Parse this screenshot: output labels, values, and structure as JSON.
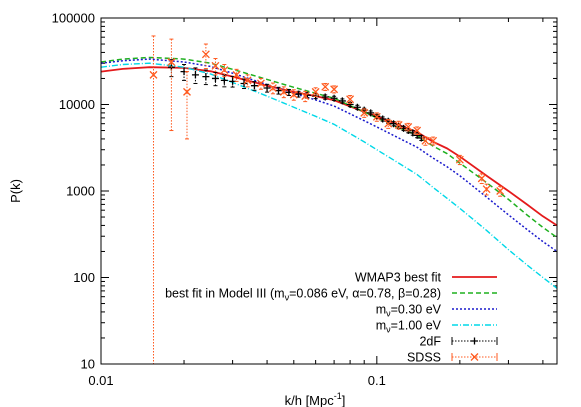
{
  "chart_data": {
    "type": "line",
    "xlabel_main": "k/h [Mpc",
    "xlabel_sup": "-1",
    "xlabel_end": "]",
    "ylabel": "P(k)",
    "x_scale": "log",
    "y_scale": "log",
    "xlim": [
      0.01,
      0.45
    ],
    "ylim": [
      10,
      100000
    ],
    "x_ticks": [
      {
        "v": 0.01,
        "label": "0.01"
      },
      {
        "v": 0.1,
        "label": "0.1"
      }
    ],
    "y_ticks": [
      {
        "v": 10,
        "label": "10"
      },
      {
        "v": 100,
        "label": "100"
      },
      {
        "v": 1000,
        "label": "1000"
      },
      {
        "v": 10000,
        "label": "10000"
      },
      {
        "v": 100000,
        "label": "100000"
      }
    ],
    "legend_position": "bottom-right",
    "series": [
      {
        "key": "wmap3",
        "name": "WMAP3 best fit",
        "legend": [
          {
            "t": "WMAP3 best fit"
          }
        ],
        "color": "#e41a1c",
        "dash": "",
        "width": 1.8,
        "points": [
          [
            0.01,
            24000
          ],
          [
            0.012,
            25800
          ],
          [
            0.015,
            27000
          ],
          [
            0.02,
            26500
          ],
          [
            0.025,
            24200
          ],
          [
            0.03,
            21000
          ],
          [
            0.04,
            16500
          ],
          [
            0.05,
            14000
          ],
          [
            0.06,
            12500
          ],
          [
            0.07,
            11200
          ],
          [
            0.08,
            9500
          ],
          [
            0.09,
            8200
          ],
          [
            0.1,
            7300
          ],
          [
            0.12,
            5800
          ],
          [
            0.14,
            4800
          ],
          [
            0.16,
            3700
          ],
          [
            0.18,
            3100
          ],
          [
            0.2,
            2500
          ],
          [
            0.25,
            1500
          ],
          [
            0.3,
            1000
          ],
          [
            0.35,
            700
          ],
          [
            0.4,
            510
          ],
          [
            0.45,
            400
          ]
        ]
      },
      {
        "key": "model3",
        "name": "best fit in Model III (mν=0.086 eV, α=0.78, β=0.28)",
        "legend": [
          {
            "t": "best fit in Model III (m"
          },
          {
            "t": "ν",
            "sub": true
          },
          {
            "t": "=0.086 eV, α=0.78, β=0.28)"
          }
        ],
        "color": "#1fb01f",
        "dash": "5,3",
        "width": 1.5,
        "points": [
          [
            0.01,
            31000
          ],
          [
            0.012,
            33500
          ],
          [
            0.015,
            35000
          ],
          [
            0.02,
            33500
          ],
          [
            0.025,
            30000
          ],
          [
            0.03,
            25500
          ],
          [
            0.04,
            19500
          ],
          [
            0.05,
            15800
          ],
          [
            0.06,
            13500
          ],
          [
            0.07,
            11800
          ],
          [
            0.08,
            9700
          ],
          [
            0.09,
            8200
          ],
          [
            0.1,
            7000
          ],
          [
            0.12,
            5400
          ],
          [
            0.14,
            4400
          ],
          [
            0.16,
            3300
          ],
          [
            0.18,
            2700
          ],
          [
            0.2,
            2100
          ],
          [
            0.25,
            1250
          ],
          [
            0.3,
            800
          ],
          [
            0.35,
            530
          ],
          [
            0.4,
            380
          ],
          [
            0.45,
            290
          ]
        ]
      },
      {
        "key": "m030",
        "name": "mν=0.30 eV",
        "legend": [
          {
            "t": "m"
          },
          {
            "t": "ν",
            "sub": true
          },
          {
            "t": "=0.30 eV"
          }
        ],
        "color": "#1a1acc",
        "dash": "2,2",
        "width": 1.5,
        "points": [
          [
            0.01,
            30000
          ],
          [
            0.012,
            32000
          ],
          [
            0.015,
            33500
          ],
          [
            0.02,
            31000
          ],
          [
            0.025,
            27500
          ],
          [
            0.03,
            23000
          ],
          [
            0.04,
            17000
          ],
          [
            0.05,
            13500
          ],
          [
            0.06,
            11300
          ],
          [
            0.07,
            9600
          ],
          [
            0.08,
            7800
          ],
          [
            0.09,
            6500
          ],
          [
            0.1,
            5500
          ],
          [
            0.12,
            4100
          ],
          [
            0.14,
            3200
          ],
          [
            0.16,
            2400
          ],
          [
            0.18,
            1900
          ],
          [
            0.2,
            1500
          ],
          [
            0.25,
            850
          ],
          [
            0.3,
            530
          ],
          [
            0.35,
            360
          ],
          [
            0.4,
            260
          ],
          [
            0.45,
            200
          ]
        ]
      },
      {
        "key": "m100",
        "name": "mν=1.00 eV",
        "legend": [
          {
            "t": "m"
          },
          {
            "t": "ν",
            "sub": true
          },
          {
            "t": "=1.00 eV"
          }
        ],
        "color": "#00d8e8",
        "dash": "6,2,1,2",
        "width": 1.4,
        "points": [
          [
            0.01,
            27000
          ],
          [
            0.012,
            29000
          ],
          [
            0.015,
            30000
          ],
          [
            0.02,
            27000
          ],
          [
            0.025,
            22500
          ],
          [
            0.03,
            18000
          ],
          [
            0.04,
            12500
          ],
          [
            0.05,
            9300
          ],
          [
            0.06,
            7300
          ],
          [
            0.07,
            5900
          ],
          [
            0.08,
            4600
          ],
          [
            0.09,
            3700
          ],
          [
            0.1,
            3000
          ],
          [
            0.12,
            2100
          ],
          [
            0.14,
            1550
          ],
          [
            0.16,
            1100
          ],
          [
            0.18,
            820
          ],
          [
            0.2,
            630
          ],
          [
            0.25,
            350
          ],
          [
            0.3,
            210
          ],
          [
            0.35,
            140
          ],
          [
            0.4,
            100
          ],
          [
            0.45,
            75
          ]
        ]
      }
    ],
    "errorbar_series": [
      {
        "key": "twodf",
        "name": "2dF",
        "legend": [
          {
            "t": "2dF"
          }
        ],
        "color": "#000000",
        "marker": "plus",
        "points": [
          [
            0.018,
            27000,
            6000
          ],
          [
            0.02,
            24000,
            5000
          ],
          [
            0.022,
            22000,
            4500
          ],
          [
            0.024,
            21000,
            4000
          ],
          [
            0.026,
            20000,
            3500
          ],
          [
            0.028,
            19000,
            3000
          ],
          [
            0.03,
            18500,
            2600
          ],
          [
            0.033,
            17500,
            2200
          ],
          [
            0.036,
            16500,
            1900
          ],
          [
            0.04,
            15500,
            1600
          ],
          [
            0.044,
            14500,
            1300
          ],
          [
            0.048,
            13800,
            1100
          ],
          [
            0.052,
            13200,
            1000
          ],
          [
            0.056,
            12800,
            900
          ],
          [
            0.06,
            12500,
            800
          ],
          [
            0.065,
            12200,
            700
          ],
          [
            0.07,
            11800,
            650
          ],
          [
            0.075,
            11000,
            600
          ],
          [
            0.08,
            10000,
            550
          ],
          [
            0.085,
            9300,
            500
          ],
          [
            0.09,
            8600,
            450
          ],
          [
            0.095,
            8000,
            420
          ],
          [
            0.1,
            7300,
            400
          ],
          [
            0.105,
            6800,
            380
          ],
          [
            0.11,
            6400,
            350
          ],
          [
            0.115,
            6000,
            330
          ],
          [
            0.12,
            5600,
            310
          ],
          [
            0.125,
            5300,
            300
          ],
          [
            0.13,
            5000,
            290
          ],
          [
            0.135,
            4700,
            280
          ],
          [
            0.14,
            4400,
            270
          ],
          [
            0.145,
            4100,
            260
          ]
        ]
      },
      {
        "key": "sdss",
        "name": "SDSS",
        "legend": [
          {
            "t": "SDSS"
          }
        ],
        "color": "#ff5a1f",
        "marker": "cross",
        "points": [
          [
            0.0155,
            22000,
            40000
          ],
          [
            0.018,
            31000,
            26000
          ],
          [
            0.0205,
            14000,
            10000
          ],
          [
            0.024,
            38000,
            12000
          ],
          [
            0.026,
            28000,
            6000
          ],
          [
            0.028,
            25000,
            4000
          ],
          [
            0.031,
            22000,
            3500
          ],
          [
            0.034,
            19000,
            3000
          ],
          [
            0.038,
            17500,
            2500
          ],
          [
            0.042,
            15500,
            2200
          ],
          [
            0.046,
            14000,
            2000
          ],
          [
            0.05,
            13000,
            1800
          ],
          [
            0.055,
            12500,
            1700
          ],
          [
            0.06,
            14000,
            1600
          ],
          [
            0.065,
            16000,
            1500
          ],
          [
            0.07,
            15000,
            1400
          ],
          [
            0.08,
            11500,
            1200
          ],
          [
            0.09,
            8000,
            900
          ],
          [
            0.1,
            7200,
            800
          ],
          [
            0.11,
            6000,
            700
          ],
          [
            0.12,
            5800,
            600
          ],
          [
            0.13,
            5500,
            550
          ],
          [
            0.14,
            5000,
            500
          ],
          [
            0.15,
            3800,
            420
          ],
          [
            0.16,
            3800,
            400
          ],
          [
            0.2,
            2300,
            280
          ],
          [
            0.24,
            1400,
            180
          ],
          [
            0.25,
            1050,
            150
          ],
          [
            0.28,
            1000,
            130
          ]
        ]
      }
    ]
  }
}
